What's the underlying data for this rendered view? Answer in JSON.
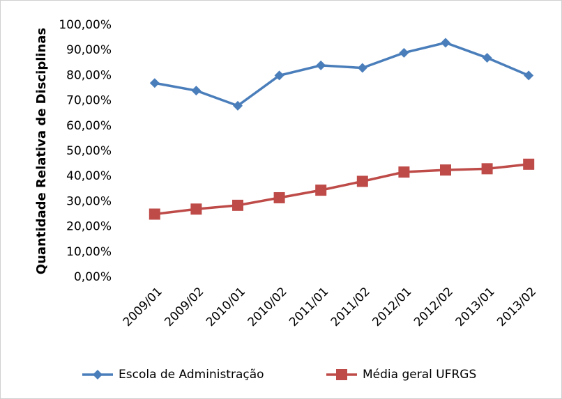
{
  "chart_data": {
    "type": "line",
    "y_label": "Quantidade Relativa de Disciplinas",
    "categories": [
      "2009/01",
      "2009/02",
      "2010/01",
      "2010/02",
      "2011/01",
      "2011/02",
      "2012/01",
      "2012/02",
      "2013/01",
      "2013/02"
    ],
    "series": [
      {
        "name": "Escola de Administração",
        "color": "#4a7ebb",
        "marker": "diamond",
        "values": [
          77,
          74,
          68,
          80,
          84,
          83,
          89,
          93,
          87,
          80
        ]
      },
      {
        "name": "Média geral UFRGS",
        "color": "#be4b48",
        "marker": "square",
        "values": [
          25,
          27,
          28.5,
          31.5,
          34.5,
          38,
          41.7,
          42.5,
          43,
          44.8
        ]
      }
    ],
    "ylim": [
      0,
      100
    ],
    "yticks": [
      {
        "value": 0,
        "label": "0,00%"
      },
      {
        "value": 10,
        "label": "10,00%"
      },
      {
        "value": 20,
        "label": "20,00%"
      },
      {
        "value": 30,
        "label": "30,00%"
      },
      {
        "value": 40,
        "label": "40,00%"
      },
      {
        "value": 50,
        "label": "50,00%"
      },
      {
        "value": 60,
        "label": "60,00%"
      },
      {
        "value": 70,
        "label": "70,00%"
      },
      {
        "value": 80,
        "label": "80,00%"
      },
      {
        "value": 90,
        "label": "90,00%"
      },
      {
        "value": 100,
        "label": "100,00%"
      }
    ],
    "legend": "bottom"
  }
}
